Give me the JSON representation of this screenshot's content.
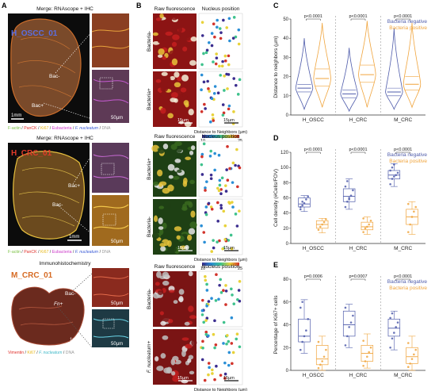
{
  "panels": {
    "a": {
      "letter": "A",
      "rows": [
        {
          "header": "Merge: RNAscope + IHC",
          "sample": "H_OSCC_01",
          "labels": [
            "Bac-",
            "Bac+"
          ],
          "scale_main": "1mm",
          "scale_inset": "50µm",
          "legend": [
            {
              "text": "F-actin",
              "color": "#7ac143"
            },
            {
              "text": " / ",
              "color": "#333333"
            },
            {
              "text": "PanCK",
              "color": "#e0302b"
            },
            {
              "text": " / ",
              "color": "#333333"
            },
            {
              "text": "Ki67",
              "color": "#e7b81a"
            },
            {
              "text": " / ",
              "color": "#333333"
            },
            {
              "text": "Eubacteria",
              "color": "#cc38c9"
            },
            {
              "text": " / ",
              "color": "#333333"
            },
            {
              "text": "F. nucleatum",
              "color": "#3a5bd6"
            },
            {
              "text": " / ",
              "color": "#333333"
            },
            {
              "text": "DNA",
              "color": "#9a9a9a"
            }
          ]
        },
        {
          "header": "Merge: RNAscope + IHC",
          "sample": "H_CRC_01",
          "labels": [
            "Bac+",
            "Bac-"
          ],
          "scale_main": "1mm",
          "scale_inset": "50µm",
          "legend": [
            {
              "text": "F-actin",
              "color": "#7ac143"
            },
            {
              "text": " / ",
              "color": "#333333"
            },
            {
              "text": "PanCK",
              "color": "#e0302b"
            },
            {
              "text": " / ",
              "color": "#333333"
            },
            {
              "text": "Ki67",
              "color": "#e7b81a"
            },
            {
              "text": " / ",
              "color": "#333333"
            },
            {
              "text": "Eubacteria",
              "color": "#cc38c9"
            },
            {
              "text": " / ",
              "color": "#333333"
            },
            {
              "text": "F. nucleatum",
              "color": "#3a5bd6"
            },
            {
              "text": " / ",
              "color": "#333333"
            },
            {
              "text": "DNA",
              "color": "#9a9a9a"
            }
          ]
        },
        {
          "header": "Immunohistochemistry",
          "sample": "M_CRC_01",
          "labels": [
            "Bac-",
            "Fn+"
          ],
          "scale_main": "1mm",
          "scale_inset": "50µm",
          "legend": [
            {
              "text": "Vimentin",
              "color": "#e0302b"
            },
            {
              "text": " / ",
              "color": "#333333"
            },
            {
              "text": "Ki67",
              "color": "#e7b81a"
            },
            {
              "text": " / ",
              "color": "#333333"
            },
            {
              "text": "F. nucleatum",
              "color": "#3fb8c8"
            },
            {
              "text": " / ",
              "color": "#333333"
            },
            {
              "text": "DNA",
              "color": "#9a9a9a"
            }
          ]
        }
      ]
    },
    "b": {
      "letter": "B",
      "col_raw": "Raw fluorescence",
      "col_nuc": "Nucleus position",
      "rows": [
        {
          "top_label": "Bacteria-",
          "bottom_label": "Bacteria+"
        },
        {
          "top_label": "Bacteria+",
          "bottom_label": "Bacteria-"
        },
        {
          "top_label": "Bacteria-",
          "bottom_label": "F. nucleatum+"
        }
      ],
      "scale_raw": "15µm",
      "scale_nuc": "15µm",
      "colorbar": {
        "label": "Distance to Neighbors (µm)",
        "min": "10",
        "max": "25"
      }
    },
    "c": {
      "letter": "C"
    },
    "d": {
      "letter": "D"
    },
    "e": {
      "letter": "E"
    }
  },
  "chart_data": [
    {
      "type": "violin",
      "ylabel": "Distance to neighbors (µm)",
      "ylim": [
        0,
        50
      ],
      "yticks": [
        0,
        10,
        20,
        30,
        40,
        50
      ],
      "categories": [
        "H_OSCC",
        "H_CRC",
        "M_CRC"
      ],
      "pvalues": [
        "p<0.0001",
        "p<0.0001",
        "p<0.0001"
      ],
      "legend": [
        "Bacteria negative",
        "Bacteria positive"
      ],
      "series": [
        {
          "name": "Bacteria negative",
          "color": "#4f5cab",
          "medians": [
            14,
            11,
            12
          ],
          "q1": [
            12,
            9,
            10
          ],
          "q3": [
            16,
            13,
            14
          ],
          "min": [
            3,
            2,
            3
          ],
          "max": [
            40,
            35,
            45
          ]
        },
        {
          "name": "Bacteria positive",
          "color": "#f0a43c",
          "medians": [
            19,
            21,
            16
          ],
          "q1": [
            15,
            17,
            13
          ],
          "q3": [
            24,
            26,
            20
          ],
          "min": [
            4,
            4,
            4
          ],
          "max": [
            48,
            49,
            48
          ]
        }
      ]
    },
    {
      "type": "box",
      "ylabel": "Cell density (#Cells/FOV)",
      "ylim": [
        0,
        120
      ],
      "yticks": [
        0,
        20,
        40,
        60,
        80,
        100,
        120
      ],
      "categories": [
        "H_OSCC",
        "H_CRC",
        "M_CRC"
      ],
      "pvalues": [
        "p<0.0001",
        "p<0.0001",
        "p<0.0001"
      ],
      "legend": [
        "Bacteria negative",
        "Bacteria positive"
      ],
      "series": [
        {
          "name": "Bacteria negative",
          "color": "#4f5cab",
          "q1": [
            48,
            55,
            85
          ],
          "median": [
            52,
            62,
            90
          ],
          "q3": [
            60,
            72,
            96
          ],
          "min": [
            42,
            45,
            75
          ],
          "max": [
            63,
            85,
            105
          ],
          "points": [
            [
              45,
              50,
              53,
              58,
              62,
              48,
              55
            ],
            [
              48,
              55,
              60,
              63,
              70,
              75,
              82,
              58
            ],
            [
              78,
              85,
              88,
              90,
              93,
              96,
              100,
              104
            ]
          ]
        },
        {
          "name": "Bacteria positive",
          "color": "#f0a43c",
          "q1": [
            20,
            18,
            25
          ],
          "median": [
            25,
            22,
            35
          ],
          "q3": [
            30,
            28,
            45
          ],
          "min": [
            14,
            12,
            12
          ],
          "max": [
            33,
            35,
            55
          ],
          "points": [
            [
              18,
              22,
              25,
              28,
              32
            ],
            [
              15,
              20,
              22,
              25,
              30,
              33
            ],
            [
              15,
              25,
              35,
              42,
              48,
              52
            ]
          ]
        }
      ]
    },
    {
      "type": "box",
      "ylabel": "Percentage of Ki67+ cells",
      "ylim": [
        0,
        80
      ],
      "yticks": [
        0,
        20,
        40,
        60,
        80
      ],
      "categories": [
        "H_OSCC",
        "H_CRC",
        "M_CRC"
      ],
      "pvalues": [
        "p=0.0006",
        "p=0.0007",
        "p<0.0001"
      ],
      "legend": [
        "Bacteria negative",
        "Bacteria positive"
      ],
      "series": [
        {
          "name": "Bacteria negative",
          "color": "#4f5cab",
          "q1": [
            25,
            30,
            30
          ],
          "median": [
            30,
            40,
            37
          ],
          "q3": [
            45,
            52,
            45
          ],
          "min": [
            15,
            20,
            18
          ],
          "max": [
            62,
            58,
            52
          ],
          "points": [
            [
              18,
              25,
              30,
              35,
              45,
              55,
              60
            ],
            [
              22,
              30,
              38,
              42,
              48,
              55
            ],
            [
              20,
              28,
              33,
              38,
              42,
              46,
              50
            ]
          ]
        },
        {
          "name": "Bacteria positive",
          "color": "#f0a43c",
          "q1": [
            5,
            8,
            6
          ],
          "median": [
            10,
            15,
            12
          ],
          "q3": [
            22,
            22,
            20
          ],
          "min": [
            0,
            2,
            0
          ],
          "max": [
            30,
            32,
            30
          ],
          "points": [
            [
              2,
              5,
              8,
              12,
              18,
              25
            ],
            [
              4,
              8,
              12,
              16,
              20,
              26
            ],
            [
              3,
              6,
              10,
              14,
              18,
              24
            ]
          ]
        }
      ]
    }
  ]
}
